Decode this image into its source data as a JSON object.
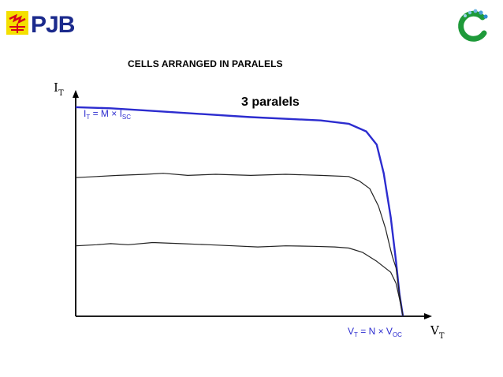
{
  "header": {
    "left_logo_text": "PJB",
    "title": "CELLS ARRANGED IN PARALELS"
  },
  "colors": {
    "logo_blue": "#1b2a8c",
    "logo_yellow": "#f4e000",
    "logo_red": "#d5001c",
    "curve_blue": "#2c2ccf",
    "curve_gray": "#222222"
  },
  "icons": {
    "right_logo": "green-ring-icon"
  },
  "chart_data": {
    "type": "line",
    "annotation": "3 paralels",
    "y_axis_label": "I",
    "y_axis_label_sub": "T",
    "x_axis_label": "V",
    "x_axis_label_sub": "T",
    "isc_label": {
      "lhs": "I",
      "lhs_sub": "T",
      "middle": " = M × I",
      "rhs_sub": "SC"
    },
    "voc_label": {
      "lhs": "V",
      "lhs_sub": "T",
      "middle": " = N × V",
      "rhs_sub": "OC"
    },
    "xlim": [
      0,
      1
    ],
    "ylim": [
      0,
      1
    ],
    "series": [
      {
        "color": "#2c2ccf",
        "points": [
          [
            0.0,
            0.95
          ],
          [
            0.1,
            0.945
          ],
          [
            0.2,
            0.935
          ],
          [
            0.35,
            0.92
          ],
          [
            0.5,
            0.905
          ],
          [
            0.7,
            0.89
          ],
          [
            0.78,
            0.875
          ],
          [
            0.83,
            0.84
          ],
          [
            0.86,
            0.78
          ],
          [
            0.88,
            0.65
          ],
          [
            0.9,
            0.45
          ],
          [
            0.915,
            0.25
          ],
          [
            0.925,
            0.1
          ],
          [
            0.935,
            0.0
          ]
        ]
      },
      {
        "color": "#222222",
        "points": [
          [
            0.0,
            0.63
          ],
          [
            0.06,
            0.635
          ],
          [
            0.12,
            0.64
          ],
          [
            0.2,
            0.645
          ],
          [
            0.25,
            0.65
          ],
          [
            0.32,
            0.64
          ],
          [
            0.4,
            0.645
          ],
          [
            0.5,
            0.64
          ],
          [
            0.6,
            0.645
          ],
          [
            0.7,
            0.64
          ],
          [
            0.78,
            0.635
          ],
          [
            0.81,
            0.615
          ],
          [
            0.84,
            0.58
          ],
          [
            0.865,
            0.5
          ],
          [
            0.885,
            0.4
          ],
          [
            0.9,
            0.3
          ],
          [
            0.905,
            0.27
          ],
          [
            0.915,
            0.22
          ],
          [
            0.925,
            0.1
          ],
          [
            0.935,
            0.0
          ]
        ]
      },
      {
        "color": "#222222",
        "points": [
          [
            0.0,
            0.32
          ],
          [
            0.06,
            0.325
          ],
          [
            0.1,
            0.33
          ],
          [
            0.15,
            0.325
          ],
          [
            0.22,
            0.335
          ],
          [
            0.3,
            0.33
          ],
          [
            0.38,
            0.325
          ],
          [
            0.45,
            0.32
          ],
          [
            0.52,
            0.315
          ],
          [
            0.6,
            0.32
          ],
          [
            0.68,
            0.318
          ],
          [
            0.74,
            0.315
          ],
          [
            0.78,
            0.31
          ],
          [
            0.82,
            0.29
          ],
          [
            0.86,
            0.25
          ],
          [
            0.9,
            0.2
          ],
          [
            0.915,
            0.15
          ],
          [
            0.925,
            0.08
          ],
          [
            0.935,
            0.0
          ]
        ]
      }
    ]
  }
}
